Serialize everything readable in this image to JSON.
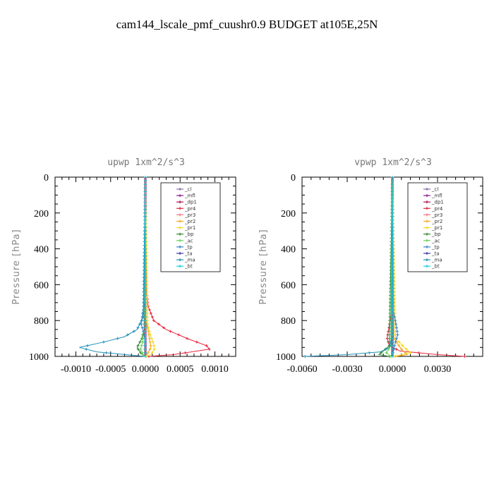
{
  "chart_data": [
    {
      "type": "line",
      "title": "cam144_lscale_pmf_cuushr0.9  BUDGET at105E,25N",
      "panel_title": "upwp   1xm^2/s^3",
      "ylabel": "Pressure [hPa]",
      "xlabel": "",
      "xlim": [
        -0.0013,
        0.0013
      ],
      "ylim": [
        1000,
        0
      ],
      "x_ticks": [
        -0.001,
        -0.0005,
        0.0,
        0.0005,
        0.001
      ],
      "x_tick_labels": [
        "-0.0010",
        "-0.0005",
        "0.0000",
        "0.0005",
        "0.0010"
      ],
      "y_ticks": [
        0,
        200,
        400,
        600,
        800,
        1000
      ],
      "y_tick_labels": [
        "0",
        "200",
        "400",
        "600",
        "800",
        "1000"
      ],
      "legend_position": "top-right",
      "series": [
        {
          "name": "_cl",
          "color": "#8c6ea8",
          "pressure": [
            0,
            700,
            850,
            950,
            1000
          ],
          "values": [
            0,
            0,
            0,
            0,
            0
          ]
        },
        {
          "name": "_mfl",
          "color": "#8e1b8e",
          "pressure": [
            0,
            700,
            850,
            950,
            1000
          ],
          "values": [
            0,
            0,
            0,
            0,
            0
          ]
        },
        {
          "name": "_dp1",
          "color": "#b01550",
          "pressure": [
            0,
            700,
            850,
            950,
            1000
          ],
          "values": [
            0,
            0,
            0,
            0,
            0
          ]
        },
        {
          "name": "_pr4",
          "color": "#e8263c",
          "pressure": [
            0,
            600,
            720,
            800,
            850,
            900,
            940,
            960,
            990,
            1000
          ],
          "values": [
            0,
            1e-05,
            4e-05,
            0.00012,
            0.0003,
            0.0006,
            0.00088,
            0.00092,
            0.0004,
            5e-05
          ]
        },
        {
          "name": "_pr3",
          "color": "#f07a8a",
          "pressure": [
            0,
            200,
            400,
            600,
            800,
            1000
          ],
          "values": [
            0,
            5e-06,
            5e-06,
            5e-06,
            5e-06,
            0
          ]
        },
        {
          "name": "_pr2",
          "color": "#f5a623",
          "pressure": [
            0,
            800,
            880,
            950,
            1000
          ],
          "values": [
            0,
            1e-05,
            5e-05,
            8e-05,
            1e-05
          ]
        },
        {
          "name": "_pr1",
          "color": "#f5d61e",
          "pressure": [
            0,
            820,
            880,
            930,
            960,
            990,
            1000
          ],
          "values": [
            0,
            3e-05,
            7e-05,
            0.00012,
            0.00013,
            8e-05,
            1e-05
          ]
        },
        {
          "name": "_bp",
          "color": "#2e8b2e",
          "pressure": [
            0,
            850,
            900,
            950,
            985,
            1000
          ],
          "values": [
            0,
            -2e-05,
            -5e-05,
            -0.00012,
            -6e-05,
            0
          ]
        },
        {
          "name": "_ac",
          "color": "#6ad05a",
          "pressure": [
            0,
            850,
            920,
            960,
            990,
            1000
          ],
          "values": [
            0,
            -2e-05,
            -4e-05,
            -7e-05,
            -3e-05,
            0
          ]
        },
        {
          "name": "_tp",
          "color": "#3a86c8",
          "pressure": [
            0,
            700,
            760,
            820,
            860,
            900,
            1000
          ],
          "values": [
            0,
            -1e-05,
            -4e-05,
            -6e-05,
            -3e-05,
            -1e-05,
            0
          ]
        },
        {
          "name": "_ta",
          "color": "#3b3bb0",
          "pressure": [
            0,
            500,
            1000
          ],
          "values": [
            0,
            0,
            0
          ]
        },
        {
          "name": "_ma",
          "color": "#1e90b8",
          "pressure": [
            0,
            780,
            850,
            890,
            920,
            950,
            975,
            995,
            1000
          ],
          "values": [
            0,
            -3e-05,
            -0.00012,
            -0.0003,
            -0.0006,
            -0.00095,
            -0.0007,
            -0.00015,
            0
          ]
        },
        {
          "name": "_bt",
          "color": "#17d0d8",
          "pressure": [
            0,
            500,
            1000
          ],
          "values": [
            0,
            0,
            0
          ]
        }
      ]
    },
    {
      "type": "line",
      "panel_title": "vpwp   1xm^2/s^3",
      "ylabel": "Pressure [hPa]",
      "xlabel": "",
      "xlim": [
        -0.006,
        0.006
      ],
      "ylim": [
        1000,
        0
      ],
      "x_ticks": [
        -0.006,
        -0.003,
        0.0,
        0.003
      ],
      "x_tick_labels": [
        "-0.0060",
        "-0.0030",
        "0.0000",
        "0.0030"
      ],
      "y_ticks": [
        0,
        200,
        400,
        600,
        800,
        1000
      ],
      "y_tick_labels": [
        "0",
        "200",
        "400",
        "600",
        "800",
        "1000"
      ],
      "legend_position": "top-right",
      "series": [
        {
          "name": "_cl",
          "color": "#8c6ea8",
          "pressure": [
            0,
            700,
            850,
            950,
            1000
          ],
          "values": [
            0,
            0,
            0,
            0,
            0
          ]
        },
        {
          "name": "_mfl",
          "color": "#8e1b8e",
          "pressure": [
            0,
            700,
            850,
            950,
            1000
          ],
          "values": [
            0,
            0,
            0,
            0,
            0
          ]
        },
        {
          "name": "_dp1",
          "color": "#b01550",
          "pressure": [
            0,
            700,
            850,
            950,
            1000
          ],
          "values": [
            0,
            0,
            0,
            0,
            0
          ]
        },
        {
          "name": "_pr4",
          "color": "#e8263c",
          "pressure": [
            0,
            750,
            850,
            900,
            940,
            970,
            990,
            1000
          ],
          "values": [
            0,
            -5e-05,
            -0.00025,
            -0.00035,
            -0.0002,
            0.0005,
            0.003,
            0.0048
          ]
        },
        {
          "name": "_pr3",
          "color": "#f07a8a",
          "pressure": [
            0,
            500,
            1000
          ],
          "values": [
            0,
            1e-05,
            0
          ]
        },
        {
          "name": "_pr2",
          "color": "#f5a623",
          "pressure": [
            0,
            900,
            960,
            990,
            1000
          ],
          "values": [
            0,
            0.0001,
            0.0006,
            0.001,
            0.0002
          ]
        },
        {
          "name": "_pr1",
          "color": "#f5d61e",
          "pressure": [
            0,
            900,
            950,
            980,
            1000
          ],
          "values": [
            0,
            0.0002,
            0.0008,
            0.0012,
            0.0001
          ]
        },
        {
          "name": "_bp",
          "color": "#2e8b2e",
          "pressure": [
            0,
            940,
            970,
            990,
            1000
          ],
          "values": [
            0,
            -0.0002,
            -0.0006,
            -0.0009,
            -0.0002
          ]
        },
        {
          "name": "_ac",
          "color": "#6ad05a",
          "pressure": [
            0,
            940,
            980,
            1000
          ],
          "values": [
            0,
            -0.0001,
            -0.0004,
            -0.0001
          ]
        },
        {
          "name": "_tp",
          "color": "#3a86c8",
          "pressure": [
            0,
            750,
            800,
            850,
            880,
            920,
            960,
            1000
          ],
          "values": [
            0,
            5e-05,
            0.0002,
            0.0003,
            0.00035,
            0.0002,
            0.0001,
            0
          ]
        },
        {
          "name": "_ta",
          "color": "#3b3bb0",
          "pressure": [
            0,
            500,
            1000
          ],
          "values": [
            0,
            0,
            0
          ]
        },
        {
          "name": "_ma",
          "color": "#1e90b8",
          "pressure": [
            0,
            900,
            950,
            975,
            990,
            1000
          ],
          "values": [
            0,
            -5e-05,
            -0.0002,
            -0.0008,
            -0.003,
            -0.0058
          ]
        },
        {
          "name": "_bt",
          "color": "#17d0d8",
          "pressure": [
            0,
            500,
            1000
          ],
          "values": [
            0,
            0,
            0
          ]
        }
      ]
    }
  ]
}
